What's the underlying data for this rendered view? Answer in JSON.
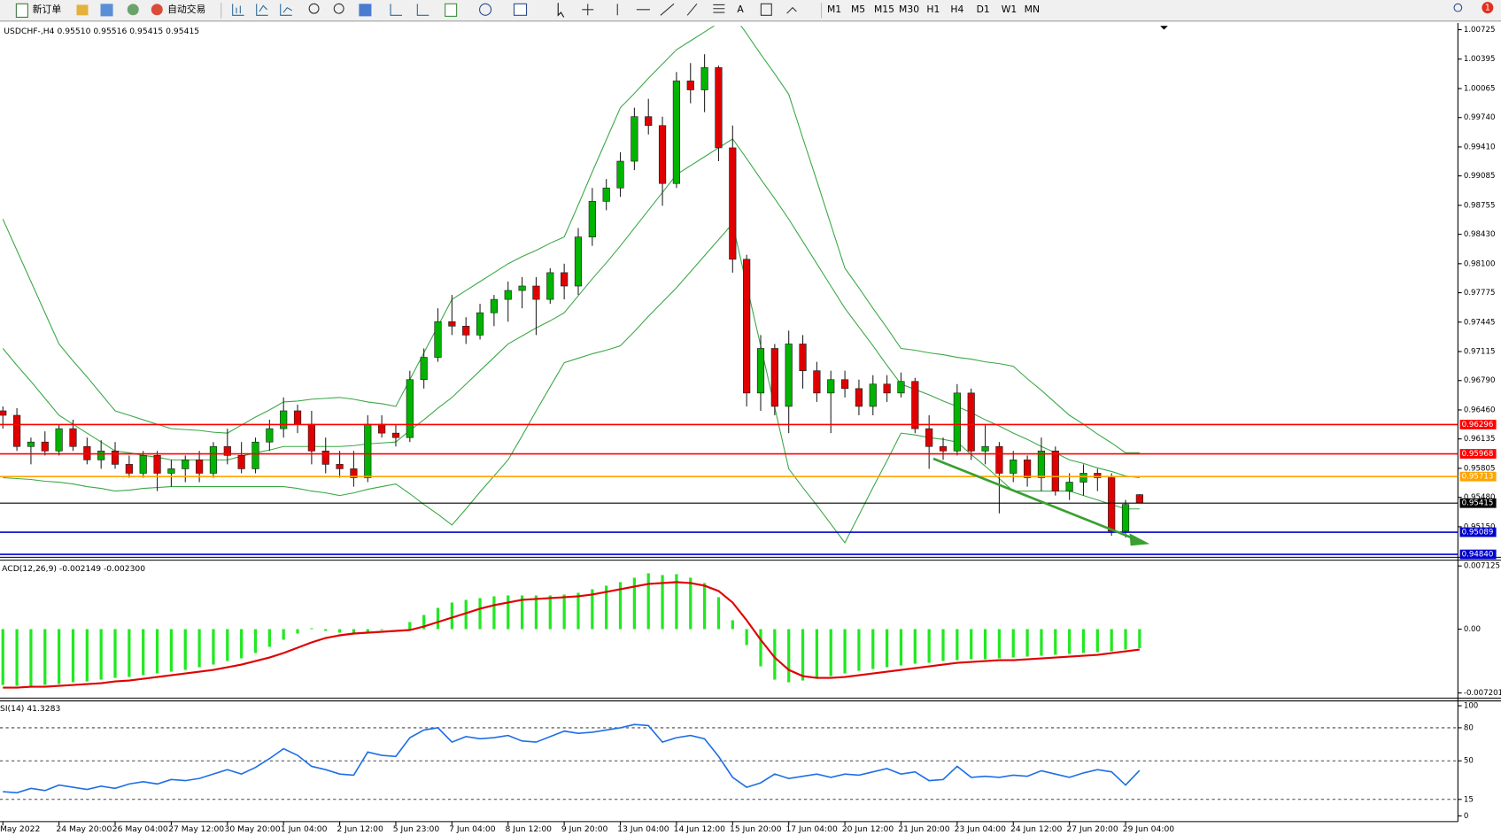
{
  "toolbar": {
    "buttons": [
      "新订单",
      "自动交易"
    ],
    "timeframes": [
      "M1",
      "M5",
      "M15",
      "M30",
      "H1",
      "H4",
      "D1",
      "W1",
      "MN"
    ],
    "badge": "1"
  },
  "chart_data": [
    {
      "type": "candlestick",
      "title": "USDCHF-,H4  0.95510 0.95516 0.95415 0.95415",
      "categories": [
        "May 2022",
        null,
        null,
        null,
        "24 May 20:00",
        null,
        null,
        null,
        "26 May 04:00",
        null,
        null,
        null,
        "27 May 12:00",
        null,
        null,
        null,
        "30 May 20:00",
        null,
        null,
        null,
        "1 Jun 04:00",
        null,
        null,
        null,
        "2 Jun 12:00",
        null,
        null,
        null,
        "5 Jun 23:00",
        null,
        null,
        null,
        "7 Jun 04:00",
        null,
        null,
        null,
        "8 Jun 12:00",
        null,
        null,
        null,
        "9 Jun 20:00",
        null,
        null,
        null,
        "13 Jun 04:00",
        null,
        null,
        null,
        "14 Jun 12:00",
        null,
        null,
        null,
        "15 Jun 20:00",
        null,
        null,
        null,
        "17 Jun 04:00",
        null,
        null,
        null,
        "20 Jun 12:00",
        null,
        null,
        null,
        "21 Jun 20:00",
        null,
        null,
        null,
        "23 Jun 04:00",
        null,
        null,
        null,
        "24 Jun 12:00",
        null,
        null,
        null,
        "27 Jun 20:00",
        null,
        null,
        null,
        "29 Jun 04:00",
        null
      ],
      "open": [
        0.9645,
        0.964,
        0.9605,
        0.961,
        0.96,
        0.9625,
        0.9605,
        0.959,
        0.96,
        0.9585,
        0.9575,
        0.9595,
        0.9575,
        0.958,
        0.959,
        0.9575,
        0.9605,
        0.9595,
        0.958,
        0.961,
        0.9625,
        0.9645,
        0.963,
        0.96,
        0.9585,
        0.958,
        0.957,
        0.963,
        0.962,
        0.9615,
        0.968,
        0.9705,
        0.9745,
        0.974,
        0.973,
        0.9755,
        0.977,
        0.978,
        0.9785,
        0.977,
        0.98,
        0.9785,
        0.984,
        0.988,
        0.9895,
        0.9925,
        0.9975,
        0.9965,
        0.99,
        1.0015,
        1.0005,
        1.003,
        0.994,
        0.9815,
        0.9665,
        0.9715,
        0.965,
        0.972,
        0.969,
        0.9665,
        0.968,
        0.967,
        0.965,
        0.9675,
        0.9665,
        0.9678,
        0.9625,
        0.9605,
        0.96,
        0.9665,
        0.96,
        0.9605,
        0.9575,
        0.959,
        0.957,
        0.96,
        0.9555,
        0.9565,
        0.9575,
        0.957,
        0.951,
        0.9551
      ],
      "high": [
        0.965,
        0.9648,
        0.9615,
        0.9622,
        0.963,
        0.9635,
        0.9615,
        0.9612,
        0.961,
        0.9595,
        0.96,
        0.96,
        0.959,
        0.9595,
        0.96,
        0.961,
        0.9625,
        0.961,
        0.9615,
        0.9635,
        0.966,
        0.9652,
        0.9645,
        0.9615,
        0.96,
        0.96,
        0.964,
        0.964,
        0.963,
        0.969,
        0.9715,
        0.976,
        0.9775,
        0.975,
        0.9765,
        0.9775,
        0.979,
        0.9795,
        0.9795,
        0.9805,
        0.981,
        0.985,
        0.9895,
        0.9905,
        0.9935,
        0.9985,
        0.9995,
        0.9975,
        1.0025,
        1.0035,
        1.0045,
        1.0032,
        0.9965,
        0.982,
        0.973,
        0.972,
        0.9735,
        0.973,
        0.97,
        0.969,
        0.969,
        0.968,
        0.9685,
        0.9685,
        0.9688,
        0.9682,
        0.964,
        0.9615,
        0.9675,
        0.967,
        0.963,
        0.961,
        0.96,
        0.9595,
        0.9615,
        0.9605,
        0.9575,
        0.9585,
        0.958,
        0.9575,
        0.9545,
        0.95516
      ],
      "low": [
        0.9625,
        0.96,
        0.9585,
        0.9595,
        0.9595,
        0.96,
        0.9585,
        0.958,
        0.958,
        0.957,
        0.957,
        0.9555,
        0.956,
        0.9565,
        0.9565,
        0.957,
        0.9585,
        0.9575,
        0.9575,
        0.96,
        0.9615,
        0.962,
        0.9585,
        0.9575,
        0.957,
        0.956,
        0.9565,
        0.9615,
        0.9605,
        0.961,
        0.967,
        0.97,
        0.973,
        0.972,
        0.9725,
        0.974,
        0.9745,
        0.976,
        0.973,
        0.9765,
        0.977,
        0.9775,
        0.983,
        0.987,
        0.9885,
        0.9915,
        0.9955,
        0.9875,
        0.9895,
        0.999,
        0.998,
        0.9925,
        0.98,
        0.965,
        0.9645,
        0.964,
        0.962,
        0.967,
        0.9655,
        0.962,
        0.966,
        0.964,
        0.964,
        0.9655,
        0.966,
        0.962,
        0.958,
        0.959,
        0.9595,
        0.959,
        0.9585,
        0.953,
        0.9565,
        0.956,
        0.9555,
        0.955,
        0.9545,
        0.955,
        0.9555,
        0.9505,
        0.9503,
        0.95415
      ],
      "close": [
        0.964,
        0.9605,
        0.961,
        0.96,
        0.9625,
        0.9605,
        0.959,
        0.96,
        0.9585,
        0.9575,
        0.9595,
        0.9575,
        0.958,
        0.959,
        0.9575,
        0.9605,
        0.9595,
        0.958,
        0.961,
        0.9625,
        0.9645,
        0.963,
        0.96,
        0.9585,
        0.958,
        0.957,
        0.963,
        0.962,
        0.9615,
        0.968,
        0.9705,
        0.9745,
        0.974,
        0.973,
        0.9755,
        0.977,
        0.978,
        0.9785,
        0.977,
        0.98,
        0.9785,
        0.984,
        0.988,
        0.9895,
        0.9925,
        0.9975,
        0.9965,
        0.99,
        1.0015,
        1.0005,
        1.003,
        0.994,
        0.9815,
        0.9665,
        0.9715,
        0.965,
        0.972,
        0.969,
        0.9665,
        0.968,
        0.967,
        0.965,
        0.9675,
        0.9665,
        0.9678,
        0.9625,
        0.9605,
        0.96,
        0.9665,
        0.96,
        0.9605,
        0.9575,
        0.959,
        0.957,
        0.96,
        0.9555,
        0.9565,
        0.9575,
        0.957,
        0.951,
        0.954,
        0.95415
      ],
      "colors": {
        "up": "#00b400",
        "down": "#e00000",
        "wick": "#222222"
      },
      "bands": {
        "color": "#3aa845",
        "upper": [
          0.986,
          0.9825,
          0.979,
          0.9755,
          0.972,
          0.9701,
          0.9683,
          0.9664,
          0.9645,
          0.964,
          0.9635,
          0.963,
          0.9625,
          0.9624,
          0.9623,
          0.9621,
          0.962,
          0.9629,
          0.9638,
          0.9646,
          0.9655,
          0.9656,
          0.9658,
          0.9659,
          0.966,
          0.9658,
          0.9655,
          0.9653,
          0.965,
          0.968,
          0.971,
          0.974,
          0.977,
          0.978,
          0.979,
          0.98,
          0.981,
          0.9818,
          0.9825,
          0.9833,
          0.984,
          0.9876,
          0.9913,
          0.9949,
          0.9985,
          1.0001,
          1.0018,
          1.0034,
          1.005,
          1.006,
          1.007,
          1.008,
          1.009,
          1.0068,
          1.0045,
          1.0023,
          1.0,
          0.9951,
          0.9903,
          0.9854,
          0.9805,
          0.9783,
          0.976,
          0.9738,
          0.9715,
          0.9713,
          0.971,
          0.9708,
          0.9705,
          0.9703,
          0.97,
          0.9698,
          0.9695,
          0.9681,
          0.9668,
          0.9654,
          0.964,
          0.963,
          0.9619,
          0.9609,
          0.9598,
          0.9598
        ],
        "middle": [
          0.9715,
          0.9696,
          0.9678,
          0.9659,
          0.964,
          0.963,
          0.962,
          0.961,
          0.96,
          0.9598,
          0.9595,
          0.9593,
          0.959,
          0.959,
          0.959,
          0.959,
          0.959,
          0.9594,
          0.9598,
          0.9601,
          0.9605,
          0.9605,
          0.9605,
          0.9605,
          0.9605,
          0.9606,
          0.9608,
          0.9609,
          0.961,
          0.9623,
          0.9635,
          0.9648,
          0.966,
          0.9675,
          0.969,
          0.9705,
          0.972,
          0.9729,
          0.9738,
          0.9746,
          0.9755,
          0.9774,
          0.9793,
          0.9811,
          0.983,
          0.985,
          0.987,
          0.989,
          0.991,
          0.992,
          0.993,
          0.994,
          0.995,
          0.9928,
          0.9905,
          0.9883,
          0.986,
          0.9835,
          0.981,
          0.9785,
          0.976,
          0.9739,
          0.9718,
          0.9696,
          0.9675,
          0.9669,
          0.9663,
          0.9656,
          0.965,
          0.9643,
          0.9635,
          0.9628,
          0.962,
          0.9613,
          0.9605,
          0.9598,
          0.959,
          0.9586,
          0.9581,
          0.9577,
          0.9572,
          0.957
        ],
        "lower": [
          0.957,
          0.9569,
          0.9568,
          0.9566,
          0.9565,
          0.9563,
          0.956,
          0.9558,
          0.9555,
          0.9556,
          0.9558,
          0.9559,
          0.956,
          0.956,
          0.956,
          0.956,
          0.956,
          0.956,
          0.956,
          0.956,
          0.956,
          0.9558,
          0.9555,
          0.9553,
          0.955,
          0.9553,
          0.9557,
          0.956,
          0.9563,
          0.9552,
          0.954,
          0.9529,
          0.9517,
          0.9535,
          0.9554,
          0.9572,
          0.959,
          0.9617,
          0.9645,
          0.9672,
          0.9699,
          0.9704,
          0.9709,
          0.9713,
          0.9718,
          0.9734,
          0.9751,
          0.9767,
          0.9783,
          0.9801,
          0.9819,
          0.9837,
          0.9855,
          0.9786,
          0.9718,
          0.9649,
          0.958,
          0.9559,
          0.9539,
          0.9518,
          0.9497,
          0.9528,
          0.9559,
          0.9589,
          0.962,
          0.9618,
          0.9615,
          0.9613,
          0.961,
          0.9596,
          0.9583,
          0.9569,
          0.9555,
          0.9555,
          0.9555,
          0.9555,
          0.9555,
          0.955,
          0.9545,
          0.954,
          0.9535,
          0.9535
        ]
      },
      "hlines": {
        "values": [
          0.96296,
          0.95968,
          0.95713,
          0.95415,
          0.95089,
          0.9484
        ],
        "value_labels": [
          "0.96296",
          "0.95968",
          "0.95713",
          "0.95415",
          "0.95089",
          "0.94840"
        ],
        "colors": [
          "#ff0000",
          "#ff0000",
          "#ffa500",
          "#000000",
          "#0000cd",
          "#0000cd"
        ]
      },
      "ylim": [
        0.94818,
        1.00768
      ],
      "yticks": [
        1.00725,
        1.00395,
        1.00065,
        {
          "value": 0.9974,
          "label": "0.99740"
        },
        {
          "value": 0.9941,
          "label": "0.99410"
        },
        0.99085,
        0.98755,
        {
          "value": 0.9843,
          "label": "0.98430"
        },
        {
          "value": 0.981,
          "label": "0.98100"
        },
        0.97775,
        0.97445,
        0.97115,
        {
          "value": 0.9679,
          "label": "0.96790"
        },
        {
          "value": 0.9646,
          "label": "0.96460"
        },
        0.96135,
        0.95805,
        {
          "value": 0.9548,
          "label": "0.95480"
        },
        {
          "value": 0.9515,
          "label": "0.95150"
        }
      ]
    },
    {
      "type": "macd",
      "title": "ACD(12,26,9) -0.002149 -0.002300",
      "values": [
        -0.0063,
        -0.0064,
        -0.0064,
        -0.0063,
        -0.0062,
        -0.006,
        -0.0059,
        -0.0057,
        -0.0055,
        -0.0054,
        -0.0052,
        -0.005,
        -0.0048,
        -0.0046,
        -0.0043,
        -0.004,
        -0.0036,
        -0.0033,
        -0.0027,
        -0.002,
        -0.0012,
        -0.0005,
        0.0001,
        -0.0002,
        -0.0004,
        -0.0005,
        -0.0003,
        -0.0001,
        0.0,
        0.0008,
        0.0016,
        0.0024,
        0.003,
        0.0033,
        0.0035,
        0.0037,
        0.0038,
        0.0038,
        0.0038,
        0.0038,
        0.0039,
        0.0041,
        0.0045,
        0.0049,
        0.0053,
        0.0058,
        0.0063,
        0.0061,
        0.0062,
        0.0058,
        0.0052,
        0.0036,
        0.001,
        -0.0018,
        -0.0042,
        -0.0057,
        -0.006,
        -0.0058,
        -0.0056,
        -0.0053,
        -0.005,
        -0.0047,
        -0.0045,
        -0.0043,
        -0.0041,
        -0.0039,
        -0.0038,
        -0.0036,
        -0.0035,
        -0.0034,
        -0.0034,
        -0.0033,
        -0.0032,
        -0.0031,
        -0.003,
        -0.0029,
        -0.0028,
        -0.0027,
        -0.0026,
        -0.0025,
        -0.0023,
        -0.002149
      ],
      "signal": [
        -0.0066,
        -0.0066,
        -0.0065,
        -0.0065,
        -0.0064,
        -0.0063,
        -0.0062,
        -0.0061,
        -0.0059,
        -0.0058,
        -0.0056,
        -0.0054,
        -0.0052,
        -0.005,
        -0.0048,
        -0.0046,
        -0.0043,
        -0.004,
        -0.0036,
        -0.0032,
        -0.0027,
        -0.0021,
        -0.0015,
        -0.001,
        -0.0007,
        -0.0005,
        -0.0004,
        -0.0003,
        -0.0002,
        -0.0001,
        0.0003,
        0.0008,
        0.0013,
        0.0018,
        0.0023,
        0.0027,
        0.003,
        0.0033,
        0.0034,
        0.0035,
        0.0036,
        0.0037,
        0.0039,
        0.0042,
        0.0045,
        0.0048,
        0.0051,
        0.0052,
        0.0053,
        0.0052,
        0.0049,
        0.0043,
        0.003,
        0.001,
        -0.0012,
        -0.0032,
        -0.0046,
        -0.0053,
        -0.0055,
        -0.0055,
        -0.0054,
        -0.0052,
        -0.005,
        -0.0048,
        -0.0046,
        -0.0044,
        -0.0042,
        -0.004,
        -0.0038,
        -0.0037,
        -0.0036,
        -0.0035,
        -0.0035,
        -0.0034,
        -0.0033,
        -0.0032,
        -0.0031,
        -0.003,
        -0.0029,
        -0.0027,
        -0.0025,
        -0.0023
      ],
      "colors": {
        "histogram": "#22e822",
        "signal": "#e00000"
      },
      "ylim": [
        -0.00767,
        0.00767
      ],
      "yticks": [
        0.007125,
        {
          "value": 0,
          "label": "0.00"
        },
        -0.007201
      ]
    },
    {
      "type": "line",
      "title": "SI(14) 41.3283",
      "values": [
        22,
        21,
        25,
        23,
        28,
        26,
        24,
        27,
        25,
        29,
        31,
        29,
        33,
        32,
        34,
        38,
        42,
        38,
        44,
        52,
        61,
        55,
        45,
        42,
        38,
        37,
        58,
        55,
        54,
        71,
        78,
        80,
        67,
        72,
        70,
        71,
        73,
        68,
        67,
        72,
        77,
        75,
        76,
        78,
        80,
        83,
        82,
        67,
        71,
        73,
        70,
        54,
        35,
        26,
        30,
        38,
        34,
        36,
        38,
        35,
        38,
        37,
        40,
        43,
        38,
        40,
        32,
        33,
        45,
        35,
        36,
        35,
        37,
        36,
        41,
        38,
        35,
        39,
        42,
        40,
        28,
        41.3283
      ],
      "color": "#1e6fe6",
      "ylim": [
        -4.3,
        103.5
      ],
      "yticks": [
        0,
        15,
        50,
        80,
        100
      ],
      "level_lines": "dashed"
    }
  ]
}
